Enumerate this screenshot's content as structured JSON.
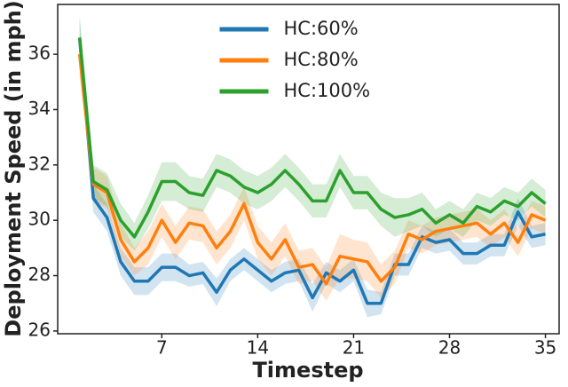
{
  "chart_data": {
    "type": "line",
    "x_label": "Timestep",
    "y_label": "Deployment Speed (in mph)",
    "x": [
      1,
      2,
      3,
      4,
      5,
      6,
      7,
      8,
      9,
      10,
      11,
      12,
      13,
      14,
      15,
      16,
      17,
      18,
      19,
      20,
      21,
      22,
      23,
      24,
      25,
      26,
      27,
      28,
      29,
      30,
      31,
      32,
      33,
      34,
      35
    ],
    "series": [
      {
        "name": "HC:60%",
        "color": "#1f77b4",
        "values": [
          36.6,
          30.8,
          30.1,
          28.5,
          27.8,
          27.8,
          28.3,
          28.3,
          28.0,
          28.1,
          27.4,
          28.2,
          28.6,
          28.2,
          27.8,
          28.1,
          28.2,
          27.2,
          28.1,
          27.8,
          28.2,
          27.0,
          27.0,
          28.4,
          28.4,
          29.4,
          29.2,
          29.3,
          28.8,
          28.8,
          29.1,
          29.1,
          30.3,
          29.4,
          29.5
        ],
        "errors": [
          0.7,
          0.5,
          0.5,
          0.5,
          0.5,
          0.5,
          0.5,
          0.5,
          0.4,
          0.4,
          0.5,
          0.4,
          0.4,
          0.4,
          0.4,
          0.4,
          0.4,
          0.5,
          0.4,
          0.4,
          0.4,
          0.5,
          0.4,
          0.4,
          0.4,
          0.4,
          0.4,
          0.4,
          0.4,
          0.4,
          0.4,
          0.4,
          0.5,
          0.4,
          0.4
        ]
      },
      {
        "name": "HC:80%",
        "color": "#ff7f0e",
        "values": [
          36.0,
          31.3,
          31.0,
          29.3,
          28.5,
          29.0,
          30.0,
          29.2,
          29.9,
          29.8,
          29.0,
          29.6,
          30.6,
          29.2,
          28.6,
          29.3,
          28.3,
          28.4,
          27.7,
          28.7,
          28.6,
          28.5,
          27.8,
          28.3,
          29.5,
          29.3,
          29.6,
          29.7,
          29.8,
          29.9,
          29.5,
          29.9,
          29.2,
          30.2,
          30.0
        ],
        "errors": [
          0.8,
          0.6,
          0.6,
          0.6,
          0.5,
          0.6,
          0.6,
          0.6,
          0.6,
          0.6,
          0.6,
          0.6,
          0.6,
          0.6,
          0.6,
          0.6,
          0.6,
          0.6,
          0.6,
          0.8,
          0.7,
          0.7,
          0.6,
          0.6,
          0.5,
          0.5,
          0.5,
          0.5,
          0.5,
          0.5,
          0.5,
          0.5,
          0.5,
          0.5,
          0.5
        ]
      },
      {
        "name": "HC:100%",
        "color": "#2ca02c",
        "values": [
          36.6,
          31.4,
          31.1,
          30.0,
          29.4,
          30.3,
          31.4,
          31.4,
          31.0,
          30.9,
          31.8,
          31.6,
          31.2,
          31.0,
          31.3,
          31.8,
          31.3,
          30.7,
          30.7,
          31.8,
          31.0,
          31.0,
          30.4,
          30.1,
          30.2,
          30.4,
          29.9,
          30.2,
          29.9,
          30.5,
          30.3,
          30.7,
          30.5,
          31.0,
          30.6
        ],
        "errors": [
          0.8,
          0.6,
          0.6,
          0.6,
          0.5,
          0.6,
          0.7,
          0.7,
          0.6,
          0.6,
          0.6,
          0.6,
          0.6,
          0.6,
          0.6,
          0.6,
          0.6,
          0.6,
          0.6,
          0.6,
          0.6,
          0.6,
          0.6,
          0.7,
          0.6,
          0.6,
          0.5,
          0.5,
          0.5,
          0.5,
          0.5,
          0.5,
          0.5,
          0.5,
          0.5
        ]
      }
    ],
    "xlim": [
      -0.6,
      36
    ],
    "ylim": [
      25.9,
      37.8
    ],
    "xticks": [
      7,
      14,
      21,
      28,
      35
    ],
    "yticks": [
      26,
      28,
      30,
      32,
      34,
      36
    ],
    "grid": false,
    "legend_position": "upper center"
  }
}
